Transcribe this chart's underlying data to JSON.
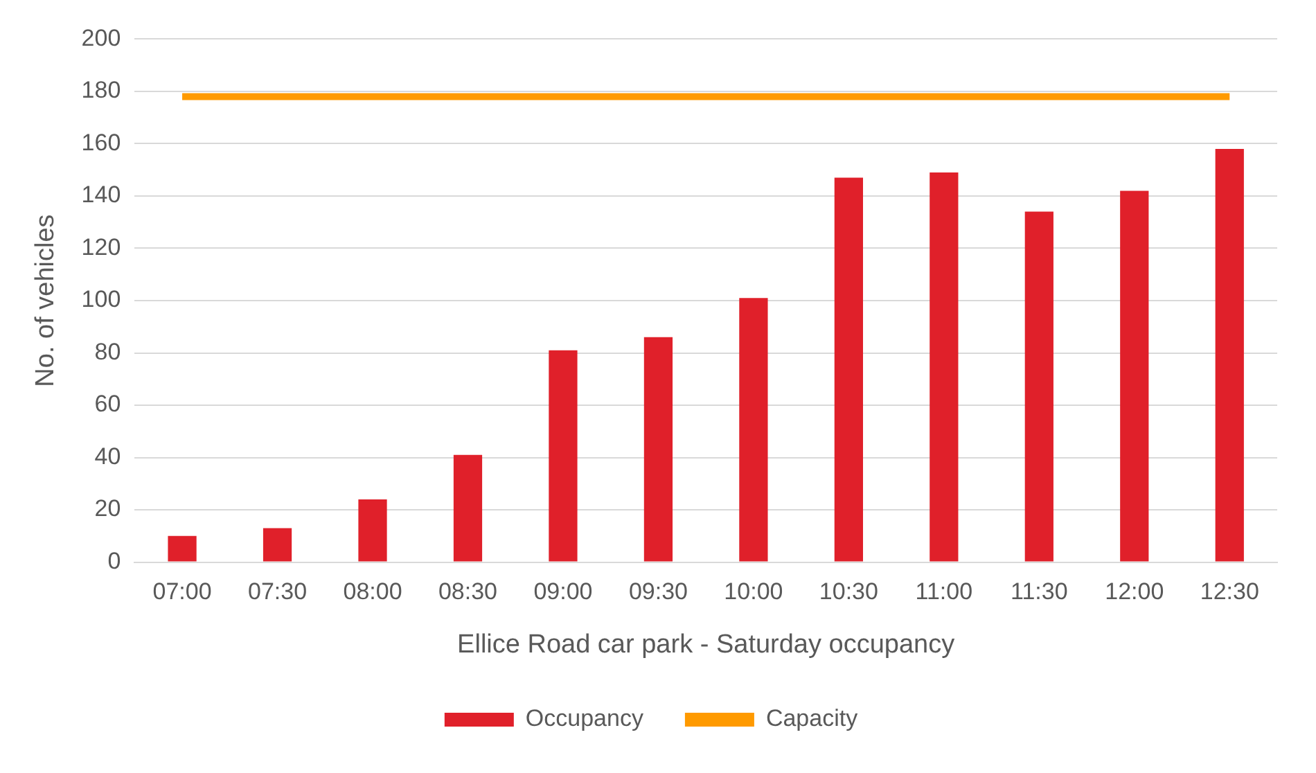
{
  "chart_data": {
    "type": "bar",
    "xlabel": "Ellice Road car park - Saturday occupancy",
    "ylabel": "No. of vehicles",
    "categories": [
      "07:00",
      "07:30",
      "08:00",
      "08:30",
      "09:00",
      "09:30",
      "10:00",
      "10:30",
      "11:00",
      "11:30",
      "12:00",
      "12:30"
    ],
    "series": [
      {
        "name": "Occupancy",
        "color": "#e0202a",
        "values": [
          10,
          13,
          24,
          41,
          81,
          86,
          101,
          147,
          149,
          134,
          142,
          158
        ]
      },
      {
        "name": "Capacity",
        "type": "line",
        "color": "#ff9a00",
        "values": [
          178,
          178,
          178,
          178,
          178,
          178,
          178,
          178,
          178,
          178,
          178,
          178
        ]
      }
    ],
    "ylim": [
      0,
      200
    ],
    "yticks": [
      0,
      20,
      40,
      60,
      80,
      100,
      120,
      140,
      160,
      180,
      200
    ],
    "grid": "y",
    "legend": "bottom",
    "marker": "none"
  }
}
